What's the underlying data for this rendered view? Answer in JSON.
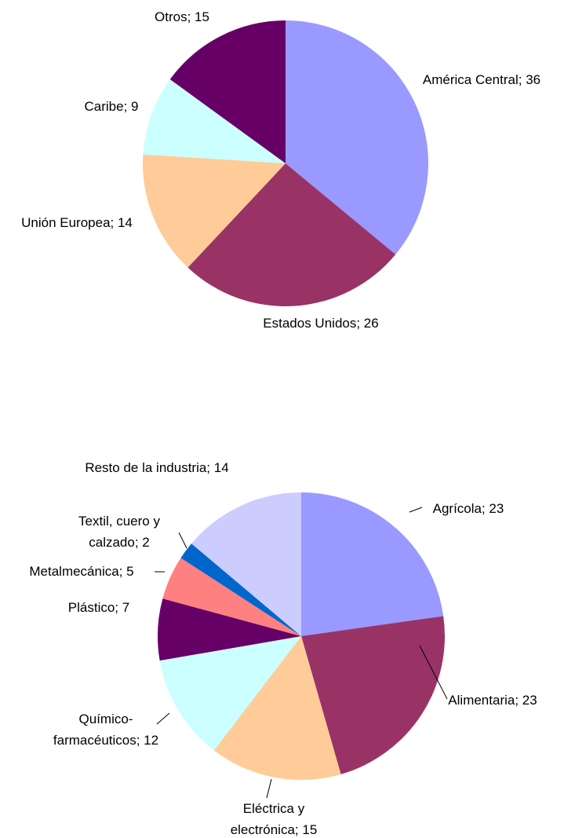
{
  "chart_data": [
    {
      "type": "pie",
      "value_labels": [
        "América Central; 36",
        "Estados Unidos; 26",
        "Unión Europea; 14",
        "Caribe; 9",
        "Otros; 15"
      ],
      "values": [
        36,
        26,
        14,
        9,
        15
      ],
      "colors": [
        "#9999ff",
        "#993366",
        "#ffcc99",
        "#ccffff",
        "#660066"
      ]
    },
    {
      "type": "pie",
      "value_labels": [
        "Agrícola; 23",
        "Alimentaria; 23",
        "Eléctrica y electrónica; 15",
        "Químico-farmacéuticos; 12",
        "Plástico; 7",
        "Metalmecánica; 5",
        "Textil, cuero y calzado; 2",
        "Resto de la industria; 14"
      ],
      "values": [
        23,
        23,
        15,
        12,
        7,
        5,
        2,
        14
      ],
      "colors": [
        "#9999ff",
        "#993366",
        "#ffcc99",
        "#ccffff",
        "#660066",
        "#ff8080",
        "#0066cc",
        "#ccccff"
      ]
    }
  ]
}
